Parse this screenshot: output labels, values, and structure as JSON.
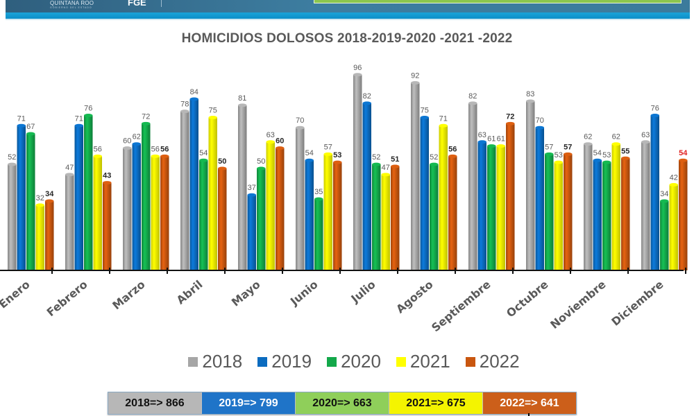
{
  "header": {
    "logo_state": "QUINTANA ROO",
    "logo_state_sub": "GOBIERNO DEL ESTADO",
    "logo_agency": "FGE"
  },
  "colors": {
    "2018": "#a6a6a6",
    "2019": "#0b6bbf",
    "2020": "#13a84a",
    "2021": "#ffff00",
    "2022": "#c9560f",
    "highlight_label": "#e0201f"
  },
  "chart_data": {
    "type": "bar",
    "title": "HOMICIDIOS DOLOSOS 2018-2019-2020 -2021 -2022",
    "xlabel": "",
    "ylabel": "",
    "ylim": [
      0,
      100
    ],
    "grid": false,
    "legend_position": "bottom",
    "categories": [
      "Enero",
      "Febrero",
      "Marzo",
      "Abril",
      "Mayo",
      "Junio",
      "Julio",
      "Agosto",
      "Septiembre",
      "Octubre",
      "Noviembre",
      "Diciembre"
    ],
    "series": [
      {
        "name": "2018",
        "values": [
          52,
          47,
          60,
          78,
          81,
          70,
          96,
          92,
          82,
          83,
          62,
          63
        ]
      },
      {
        "name": "2019",
        "values": [
          71,
          71,
          62,
          84,
          37,
          54,
          82,
          75,
          63,
          70,
          54,
          76
        ]
      },
      {
        "name": "2020",
        "values": [
          67,
          76,
          72,
          54,
          50,
          35,
          52,
          52,
          61,
          57,
          53,
          34
        ]
      },
      {
        "name": "2021",
        "values": [
          32,
          56,
          56,
          75,
          63,
          57,
          47,
          71,
          61,
          53,
          62,
          42
        ]
      },
      {
        "name": "2022",
        "values": [
          34,
          43,
          56,
          50,
          60,
          53,
          51,
          56,
          72,
          57,
          55,
          54
        ]
      }
    ]
  },
  "totals": [
    {
      "label": "2018=> 866",
      "bg": "#b7b7b7",
      "fg": "#111111"
    },
    {
      "label": "2019=> 799",
      "bg": "#1f74c8",
      "fg": "#ffffff"
    },
    {
      "label": "2020=> 663",
      "bg": "#8fcf5a",
      "fg": "#111111"
    },
    {
      "label": "2021=> 675",
      "bg": "#f4f400",
      "fg": "#111111"
    },
    {
      "label": "2022=> 641",
      "bg": "#cc5f1a",
      "fg": "#ffffff"
    }
  ]
}
